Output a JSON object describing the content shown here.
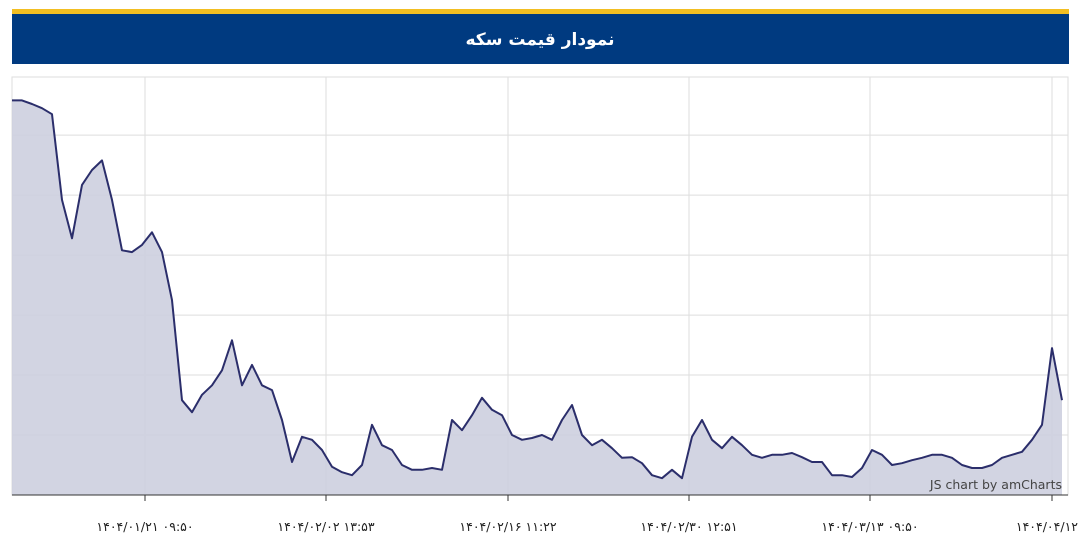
{
  "chart_data": {
    "type": "area",
    "title": "نمودار قیمت سکه",
    "credit": "JS chart by amCharts",
    "x": [
      0,
      1,
      2,
      3,
      4,
      5,
      6,
      7,
      8,
      9,
      10,
      11,
      12,
      13,
      14,
      15,
      16,
      17,
      18,
      19,
      20,
      21,
      22,
      23,
      24,
      25,
      26,
      27,
      28,
      29,
      30,
      31,
      32,
      33,
      34,
      35,
      36,
      37,
      38,
      39,
      40,
      41,
      42,
      43,
      44,
      45,
      46,
      47,
      48,
      49,
      50,
      51,
      52,
      53,
      54,
      55,
      56,
      57,
      58,
      59,
      60,
      61,
      62,
      63,
      64,
      65,
      66,
      67,
      68,
      69,
      70,
      71,
      72,
      73,
      74,
      75,
      76,
      77,
      78,
      79,
      80,
      81,
      82,
      83,
      84,
      85,
      86,
      87,
      88,
      89,
      90,
      91,
      92,
      93,
      94,
      95,
      96,
      97,
      98,
      99,
      100,
      101,
      102,
      103,
      104,
      105
    ],
    "values": [
      6.58,
      6.58,
      6.52,
      6.45,
      6.35,
      4.92,
      4.28,
      5.17,
      5.42,
      5.58,
      4.92,
      4.08,
      4.05,
      4.17,
      4.38,
      4.05,
      3.25,
      1.58,
      1.38,
      1.67,
      1.83,
      2.08,
      2.58,
      1.83,
      2.17,
      1.83,
      1.75,
      1.25,
      0.55,
      0.97,
      0.92,
      0.75,
      0.47,
      0.38,
      0.33,
      0.5,
      1.17,
      0.83,
      0.75,
      0.5,
      0.42,
      0.42,
      0.45,
      0.42,
      1.25,
      1.08,
      1.33,
      1.62,
      1.42,
      1.33,
      1.0,
      0.92,
      0.95,
      1.0,
      0.92,
      1.25,
      1.5,
      1.0,
      0.83,
      0.92,
      0.78,
      0.62,
      0.63,
      0.53,
      0.33,
      0.28,
      0.42,
      0.28,
      0.97,
      1.25,
      0.92,
      0.78,
      0.97,
      0.83,
      0.67,
      0.62,
      0.67,
      0.67,
      0.7,
      0.63,
      0.55,
      0.55,
      0.33,
      0.33,
      0.3,
      0.45,
      0.75,
      0.67,
      0.5,
      0.53,
      0.58,
      0.62,
      0.67,
      0.67,
      0.62,
      0.5,
      0.45,
      0.45,
      0.5,
      0.62,
      0.67,
      0.72,
      0.92,
      1.17,
      2.45,
      1.58
    ],
    "color": "#2b2e6b",
    "fill": "#cdcfdf",
    "xlim": [
      0,
      105.6
    ],
    "xticks": [
      {
        "value": 13.3,
        "label": "۱۴۰۴/۰۱/۲۱ ۰۹:۵۰"
      },
      {
        "value": 31.4,
        "label": "۱۴۰۴/۰۲/۰۲ ۱۳:۵۳"
      },
      {
        "value": 49.6,
        "label": "۱۴۰۴/۰۲/۱۶ ۱۱:۲۲"
      },
      {
        "value": 67.7,
        "label": "۱۴۰۴/۰۲/۳۰ ۱۲:۵۱"
      },
      {
        "value": 85.8,
        "label": "۱۴۰۴/۰۳/۱۳ ۰۹:۵۰"
      },
      {
        "value": 104,
        "label": "۱۴۰۴/۰۴/۱۲"
      }
    ],
    "ylim": [
      0,
      6.97
    ],
    "yticks": [
      0,
      1,
      2,
      3,
      4,
      5,
      6
    ],
    "grid": true
  }
}
